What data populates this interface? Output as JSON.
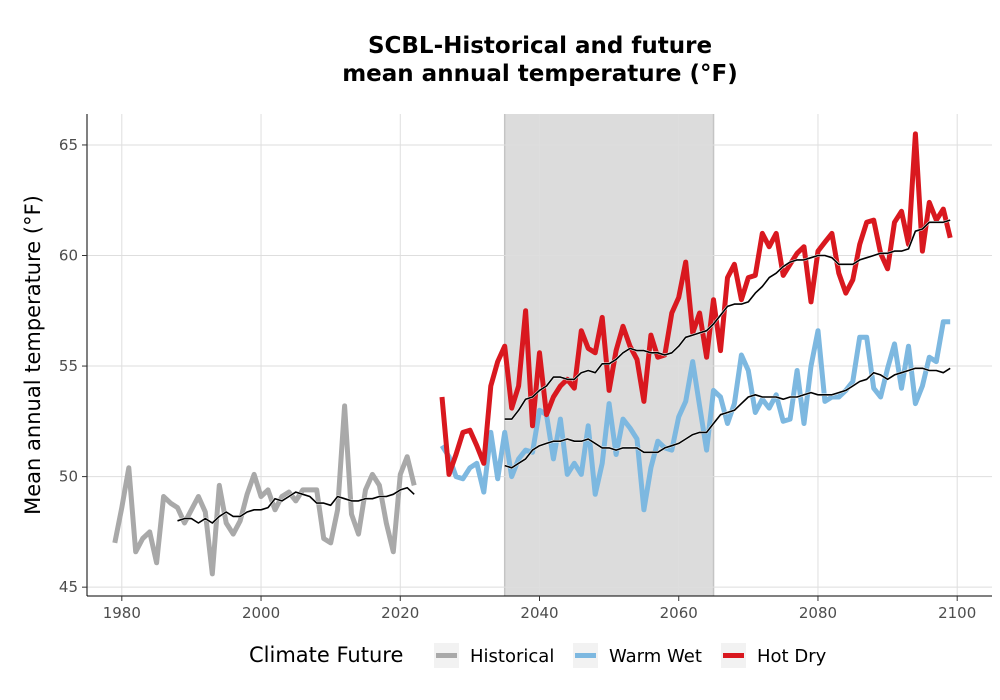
{
  "chart_data": {
    "type": "line",
    "title_line1": "SCBL-Historical and future",
    "title_line2": "mean annual temperature (°F)",
    "xlabel": "",
    "ylabel": "Mean annual temperature (°F)",
    "xlim": [
      1975,
      2105
    ],
    "ylim": [
      44.6,
      66.4
    ],
    "x_ticks": [
      1980,
      2000,
      2020,
      2040,
      2060,
      2080,
      2100
    ],
    "y_ticks": [
      45,
      50,
      55,
      60,
      65
    ],
    "grid": true,
    "shaded_period": [
      2035,
      2065
    ],
    "legend": {
      "title": "Climate Future",
      "position": "bottom"
    },
    "series": [
      {
        "name": "Historical",
        "color": "#a9a9a9",
        "x": [
          1979,
          1980,
          1981,
          1982,
          1983,
          1984,
          1985,
          1986,
          1987,
          1988,
          1989,
          1990,
          1991,
          1992,
          1993,
          1994,
          1995,
          1996,
          1997,
          1998,
          1999,
          2000,
          2001,
          2002,
          2003,
          2004,
          2005,
          2006,
          2007,
          2008,
          2009,
          2010,
          2011,
          2012,
          2013,
          2014,
          2015,
          2016,
          2017,
          2018,
          2019,
          2020,
          2021,
          2022
        ],
        "values": [
          47.0,
          48.6,
          50.4,
          46.6,
          47.2,
          47.5,
          46.1,
          49.1,
          48.8,
          48.6,
          47.9,
          48.5,
          49.1,
          48.4,
          45.6,
          49.6,
          47.9,
          47.4,
          48.0,
          49.2,
          50.1,
          49.1,
          49.4,
          48.5,
          49.1,
          49.3,
          48.9,
          49.4,
          49.4,
          49.4,
          47.2,
          47.0,
          48.5,
          53.2,
          48.3,
          47.4,
          49.4,
          50.1,
          49.6,
          47.9,
          46.6,
          50.1,
          50.9,
          49.6
        ]
      },
      {
        "name": "Warm Wet",
        "color": "#7db8e0",
        "x": [
          2026,
          2027,
          2028,
          2029,
          2030,
          2031,
          2032,
          2033,
          2034,
          2035,
          2036,
          2037,
          2038,
          2039,
          2040,
          2041,
          2042,
          2043,
          2044,
          2045,
          2046,
          2047,
          2048,
          2049,
          2050,
          2051,
          2052,
          2053,
          2054,
          2055,
          2056,
          2057,
          2058,
          2059,
          2060,
          2061,
          2062,
          2063,
          2064,
          2065,
          2066,
          2067,
          2068,
          2069,
          2070,
          2071,
          2072,
          2073,
          2074,
          2075,
          2076,
          2077,
          2078,
          2079,
          2080,
          2081,
          2082,
          2083,
          2084,
          2085,
          2086,
          2087,
          2088,
          2089,
          2090,
          2091,
          2092,
          2093,
          2094,
          2095,
          2096,
          2097,
          2098,
          2099
        ],
        "values": [
          51.4,
          50.9,
          50.0,
          49.9,
          50.4,
          50.6,
          49.3,
          52.0,
          49.9,
          52.0,
          50.0,
          50.8,
          51.2,
          51.1,
          53.0,
          52.8,
          50.8,
          52.6,
          50.1,
          50.6,
          50.1,
          52.3,
          49.2,
          50.6,
          53.3,
          51.0,
          52.6,
          52.2,
          51.7,
          48.5,
          50.4,
          51.6,
          51.3,
          51.2,
          52.7,
          53.4,
          55.2,
          53.2,
          51.2,
          53.9,
          53.6,
          52.4,
          53.3,
          55.5,
          54.8,
          52.9,
          53.5,
          53.1,
          53.7,
          52.5,
          52.6,
          54.8,
          52.4,
          55.0,
          56.6,
          53.4,
          53.6,
          53.6,
          53.9,
          54.3,
          56.3,
          56.3,
          54.0,
          53.6,
          54.9,
          56.0,
          54.0,
          55.9,
          53.3,
          54.1,
          55.4,
          55.2,
          57.0,
          57.0
        ]
      },
      {
        "name": "Hot Dry",
        "color": "#d9181f",
        "x": [
          2026,
          2027,
          2028,
          2029,
          2030,
          2031,
          2032,
          2033,
          2034,
          2035,
          2036,
          2037,
          2038,
          2039,
          2040,
          2041,
          2042,
          2043,
          2044,
          2045,
          2046,
          2047,
          2048,
          2049,
          2050,
          2051,
          2052,
          2053,
          2054,
          2055,
          2056,
          2057,
          2058,
          2059,
          2060,
          2061,
          2062,
          2063,
          2064,
          2065,
          2066,
          2067,
          2068,
          2069,
          2070,
          2071,
          2072,
          2073,
          2074,
          2075,
          2076,
          2077,
          2078,
          2079,
          2080,
          2081,
          2082,
          2083,
          2084,
          2085,
          2086,
          2087,
          2088,
          2089,
          2090,
          2091,
          2092,
          2093,
          2094,
          2095,
          2096,
          2097,
          2098,
          2099
        ],
        "values": [
          53.6,
          50.1,
          51.0,
          52.0,
          52.1,
          51.4,
          50.6,
          54.1,
          55.2,
          55.9,
          53.1,
          54.1,
          57.5,
          52.3,
          55.6,
          52.8,
          53.6,
          54.1,
          54.4,
          54.0,
          56.6,
          55.8,
          55.6,
          57.2,
          53.9,
          55.7,
          56.8,
          55.9,
          55.3,
          53.4,
          56.4,
          55.4,
          55.5,
          57.4,
          58.1,
          59.7,
          56.5,
          57.4,
          55.4,
          58.0,
          55.7,
          59.0,
          59.6,
          58.0,
          59.0,
          59.1,
          61.0,
          60.4,
          61.0,
          59.1,
          59.6,
          60.1,
          60.4,
          57.9,
          60.2,
          60.6,
          61.0,
          59.2,
          58.3,
          58.9,
          60.5,
          61.5,
          61.6,
          60.1,
          59.4,
          61.5,
          62.0,
          60.5,
          65.5,
          60.2,
          62.4,
          61.6,
          62.1,
          60.8
        ]
      }
    ],
    "moving_average": {
      "color": "#000000",
      "series": [
        {
          "x": [
            1988,
            1989,
            1990,
            1991,
            1992,
            1993,
            1994,
            1995,
            1996,
            1997,
            1998,
            1999,
            2000,
            2001,
            2002,
            2003,
            2004,
            2005,
            2006,
            2007,
            2008,
            2009,
            2010,
            2011,
            2012,
            2013,
            2014,
            2015,
            2016,
            2017,
            2018,
            2019,
            2020,
            2021,
            2022
          ],
          "values": [
            48.0,
            48.1,
            48.1,
            47.9,
            48.1,
            47.9,
            48.2,
            48.4,
            48.2,
            48.2,
            48.4,
            48.5,
            48.5,
            48.6,
            49.0,
            48.9,
            49.1,
            49.3,
            49.2,
            49.1,
            48.8,
            48.8,
            48.7,
            49.1,
            49.0,
            48.9,
            48.9,
            49.0,
            49.0,
            49.1,
            49.1,
            49.2,
            49.4,
            49.5,
            49.2
          ]
        },
        {
          "x": [
            2035,
            2036,
            2037,
            2038,
            2039,
            2040,
            2041,
            2042,
            2043,
            2044,
            2045,
            2046,
            2047,
            2048,
            2049,
            2050,
            2051,
            2052,
            2053,
            2054,
            2055,
            2056,
            2057,
            2058,
            2059,
            2060,
            2061,
            2062,
            2063,
            2064,
            2065,
            2066,
            2067,
            2068,
            2069,
            2070,
            2071,
            2072,
            2073,
            2074,
            2075,
            2076,
            2077,
            2078,
            2079,
            2080,
            2081,
            2082,
            2083,
            2084,
            2085,
            2086,
            2087,
            2088,
            2089,
            2090,
            2091,
            2092,
            2093,
            2094,
            2095,
            2096,
            2097,
            2098,
            2099
          ],
          "values": [
            50.5,
            50.4,
            50.6,
            50.8,
            51.2,
            51.4,
            51.5,
            51.6,
            51.6,
            51.7,
            51.6,
            51.6,
            51.7,
            51.5,
            51.3,
            51.3,
            51.2,
            51.3,
            51.3,
            51.3,
            51.1,
            51.1,
            51.1,
            51.3,
            51.4,
            51.5,
            51.7,
            51.9,
            52.0,
            52.0,
            52.4,
            52.8,
            52.9,
            53.0,
            53.3,
            53.6,
            53.7,
            53.6,
            53.6,
            53.6,
            53.5,
            53.6,
            53.6,
            53.7,
            53.8,
            53.7,
            53.7,
            53.7,
            53.8,
            53.9,
            54.1,
            54.3,
            54.4,
            54.7,
            54.6,
            54.4,
            54.6,
            54.7,
            54.8,
            54.9,
            54.9,
            54.8,
            54.8,
            54.7,
            54.9
          ]
        },
        {
          "x": [
            2035,
            2036,
            2037,
            2038,
            2039,
            2040,
            2041,
            2042,
            2043,
            2044,
            2045,
            2046,
            2047,
            2048,
            2049,
            2050,
            2051,
            2052,
            2053,
            2054,
            2055,
            2056,
            2057,
            2058,
            2059,
            2060,
            2061,
            2062,
            2063,
            2064,
            2065,
            2066,
            2067,
            2068,
            2069,
            2070,
            2071,
            2072,
            2073,
            2074,
            2075,
            2076,
            2077,
            2078,
            2079,
            2080,
            2081,
            2082,
            2083,
            2084,
            2085,
            2086,
            2087,
            2088,
            2089,
            2090,
            2091,
            2092,
            2093,
            2094,
            2095,
            2096,
            2097,
            2098,
            2099
          ],
          "values": [
            52.6,
            52.6,
            53.0,
            53.5,
            53.6,
            53.9,
            54.1,
            54.5,
            54.5,
            54.4,
            54.4,
            54.7,
            54.8,
            54.7,
            55.1,
            55.1,
            55.3,
            55.6,
            55.8,
            55.7,
            55.7,
            55.6,
            55.6,
            55.5,
            55.6,
            55.9,
            56.3,
            56.4,
            56.5,
            56.6,
            56.9,
            57.3,
            57.7,
            57.8,
            57.8,
            57.9,
            58.3,
            58.6,
            59.0,
            59.2,
            59.5,
            59.7,
            59.8,
            59.8,
            59.9,
            60.0,
            60.0,
            59.9,
            59.6,
            59.6,
            59.6,
            59.8,
            59.9,
            60.0,
            60.1,
            60.1,
            60.2,
            60.2,
            60.3,
            61.1,
            61.2,
            61.5,
            61.5,
            61.5,
            61.6
          ]
        }
      ]
    }
  }
}
